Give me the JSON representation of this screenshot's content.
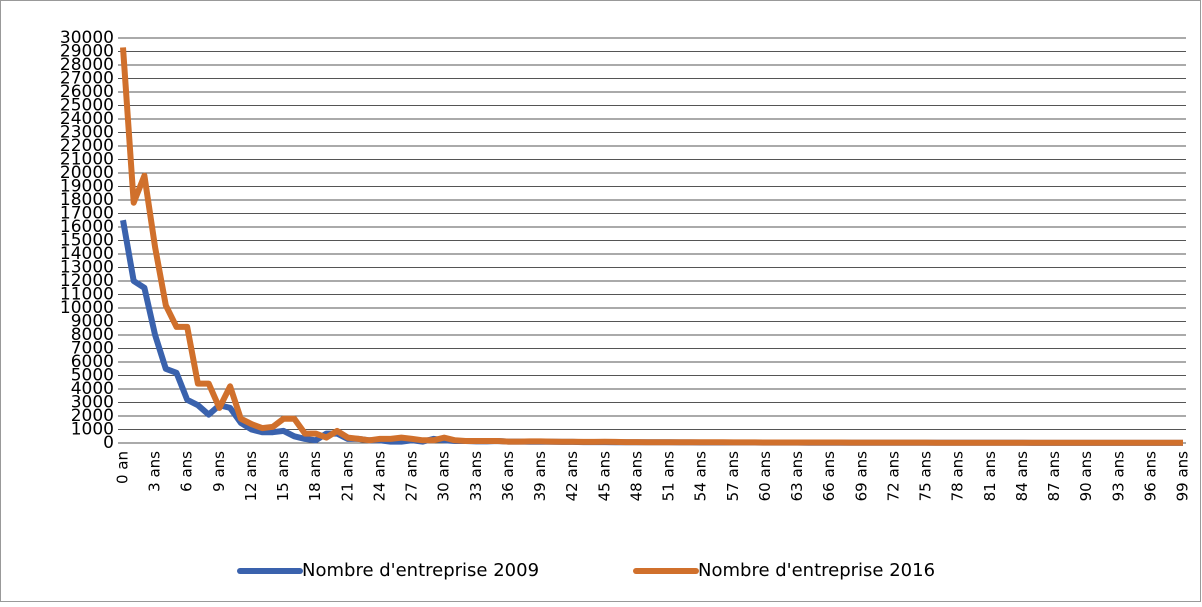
{
  "chart_data": {
    "type": "line",
    "categories": [
      "0 an",
      null,
      null,
      "3 ans",
      null,
      null,
      "6 ans",
      null,
      null,
      "9 ans",
      null,
      null,
      "12 ans",
      null,
      null,
      "15 ans",
      null,
      null,
      "18 ans",
      null,
      null,
      "21 ans",
      null,
      null,
      "24 ans",
      null,
      null,
      "27 ans",
      null,
      null,
      "30 ans",
      null,
      null,
      "33 ans",
      null,
      null,
      "36 ans",
      null,
      null,
      "39 ans",
      null,
      null,
      "42 ans",
      null,
      null,
      "45 ans",
      null,
      null,
      "48 ans",
      null,
      null,
      "51 ans",
      null,
      null,
      "54 ans",
      null,
      null,
      "57 ans",
      null,
      null,
      "60 ans",
      null,
      null,
      "63 ans",
      null,
      null,
      "66 ans",
      null,
      null,
      "69 ans",
      null,
      null,
      "72 ans",
      null,
      null,
      "75 ans",
      null,
      null,
      "78 ans",
      null,
      null,
      "81 ans",
      null,
      null,
      "84 ans",
      null,
      null,
      "87 ans",
      null,
      null,
      "90 ans",
      null,
      null,
      "93 ans",
      null,
      null,
      "96 ans",
      null,
      null,
      "99 ans"
    ],
    "series": [
      {
        "name": "Nombre d'entreprise 2009",
        "color": "#3a62ad",
        "values": [
          16500,
          12000,
          11500,
          8000,
          5500,
          5200,
          3200,
          2800,
          2100,
          2800,
          2600,
          1500,
          1000,
          800,
          800,
          900,
          500,
          300,
          200,
          700,
          700,
          300,
          300,
          200,
          200,
          100,
          100,
          200,
          100,
          300,
          200,
          150,
          150,
          120,
          120,
          150,
          100,
          100,
          90,
          90,
          90,
          80,
          80,
          70,
          70,
          70,
          60,
          60,
          60,
          50,
          50,
          50,
          45,
          45,
          40,
          40,
          40,
          35,
          35,
          35,
          30,
          30,
          30,
          30,
          25,
          25,
          25,
          25,
          20,
          20,
          20,
          20,
          20,
          18,
          18,
          18,
          15,
          15,
          15,
          15,
          15,
          12,
          12,
          12,
          12,
          10,
          10,
          10,
          10,
          10,
          8,
          8,
          8,
          8,
          8,
          6,
          6,
          6,
          6,
          6
        ]
      },
      {
        "name": "Nombre d'entreprise 2016",
        "color": "#d0702c",
        "values": [
          29300,
          17800,
          19800,
          14500,
          10200,
          8600,
          8600,
          4400,
          4400,
          2600,
          4200,
          1800,
          1400,
          1100,
          1200,
          1800,
          1800,
          700,
          700,
          400,
          900,
          400,
          300,
          200,
          300,
          300,
          400,
          300,
          200,
          200,
          400,
          200,
          150,
          150,
          150,
          150,
          100,
          100,
          120,
          120,
          100,
          90,
          90,
          80,
          80,
          90,
          80,
          70,
          70,
          60,
          60,
          60,
          55,
          55,
          50,
          50,
          50,
          45,
          45,
          45,
          40,
          40,
          40,
          40,
          35,
          35,
          35,
          35,
          30,
          30,
          30,
          30,
          30,
          28,
          28,
          28,
          25,
          25,
          25,
          25,
          25,
          22,
          22,
          22,
          22,
          20,
          20,
          20,
          20,
          20,
          18,
          18,
          18,
          18,
          18,
          15,
          15,
          15,
          15,
          15
        ]
      }
    ],
    "ylim": [
      0,
      30000
    ],
    "yticks": [
      0,
      1000,
      2000,
      3000,
      4000,
      5000,
      6000,
      7000,
      8000,
      9000,
      10000,
      11000,
      12000,
      13000,
      14000,
      15000,
      16000,
      17000,
      18000,
      19000,
      20000,
      21000,
      22000,
      23000,
      24000,
      25000,
      26000,
      27000,
      28000,
      29000,
      30000
    ],
    "grid": true,
    "legend": "bottom"
  }
}
